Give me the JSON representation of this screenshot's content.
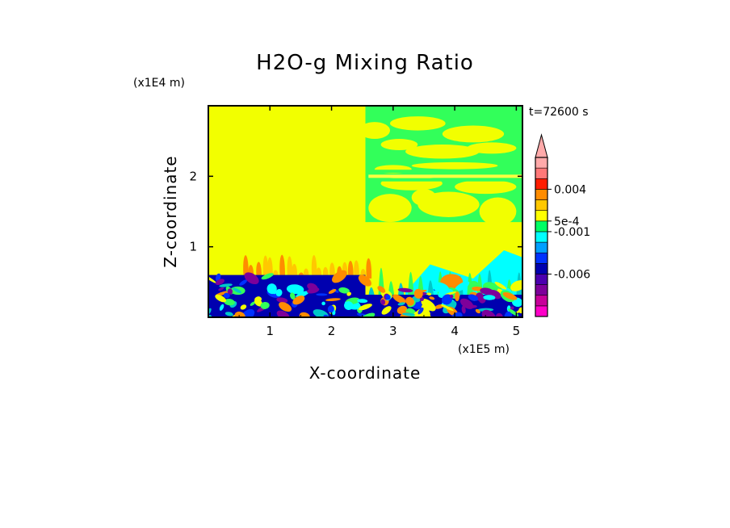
{
  "chart_data": {
    "type": "heatmap",
    "title": "H2O-g Mixing Ratio",
    "xlabel": "X-coordinate",
    "ylabel": "Z-coordinate",
    "x_scale_label": "(x1E5 m)",
    "y_scale_label": "(x1E4 m)",
    "time_label": "t=72600 s",
    "xlim": [
      0,
      5.1
    ],
    "ylim": [
      0,
      3.0
    ],
    "x_ticks": [
      1,
      2,
      3,
      4,
      5
    ],
    "y_ticks": [
      1,
      2
    ],
    "x_tick_labels": [
      "1",
      "2",
      "3",
      "4",
      "5"
    ],
    "y_tick_labels": [
      "1",
      "2"
    ],
    "colorbar": {
      "colors": [
        "#ff00c8",
        "#c8009a",
        "#7d009a",
        "#4b00af",
        "#0000af",
        "#0032ff",
        "#00a0ff",
        "#00ffff",
        "#00ff64",
        "#ffff00",
        "#ffc800",
        "#ff8c00",
        "#ff1e00",
        "#ff7878",
        "#ffaaaa"
      ],
      "labels": [
        "0.004",
        "5e-4",
        "-0.001",
        "-0.006"
      ],
      "extend": "max"
    },
    "palette": {
      "yellow": "#f2ff00",
      "pale_yellow": "#ffff40",
      "green": "#32ff5a",
      "cyan": "#00ffff",
      "teal": "#00c8c8",
      "blue": "#0032ff",
      "navy": "#0000af",
      "orange": "#ff8c00",
      "light_orange": "#ffc800",
      "red": "#ff3c00",
      "purple": "#7d009a"
    }
  }
}
